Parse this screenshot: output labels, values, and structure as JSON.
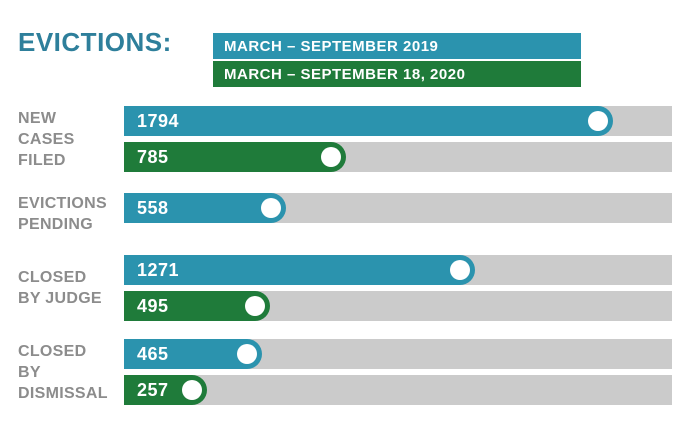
{
  "title": "EVICTIONS:",
  "legend": [
    {
      "label": "MARCH – SEPTEMBER 2019",
      "color": "#2b93ae"
    },
    {
      "label": "MARCH – SEPTEMBER 18, 2020",
      "color": "#1f7b3a"
    }
  ],
  "chart_data": {
    "type": "bar",
    "orientation": "horizontal",
    "title": "EVICTIONS:",
    "categories": [
      "NEW CASES FILED",
      "EVICTIONS PENDING",
      "CLOSED BY JUDGE",
      "CLOSED BY DISMISSAL"
    ],
    "category_lines": [
      [
        "NEW",
        "CASES",
        "FILED"
      ],
      [
        "EVICTIONS",
        "PENDING"
      ],
      [
        "CLOSED",
        "BY JUDGE"
      ],
      [
        "CLOSED",
        "BY",
        "DISMISSAL"
      ]
    ],
    "series": [
      {
        "name": "MARCH – SEPTEMBER 2019",
        "color": "#2b93ae",
        "values": [
          1794,
          558,
          1271,
          465
        ]
      },
      {
        "name": "MARCH – SEPTEMBER 18, 2020",
        "color": "#1f7b3a",
        "values": [
          785,
          null,
          495,
          257
        ]
      }
    ],
    "xlim": [
      0,
      2030
    ],
    "grid": false,
    "legend_position": "top",
    "value_labels": "inside-start",
    "track_color": "#cbcbcb",
    "marker": "white-circle-at-bar-end"
  },
  "colors": {
    "title": "#2e7f9b",
    "category_label": "#8c8c8c",
    "value_label": "#ffffff",
    "background": "#ffffff"
  }
}
